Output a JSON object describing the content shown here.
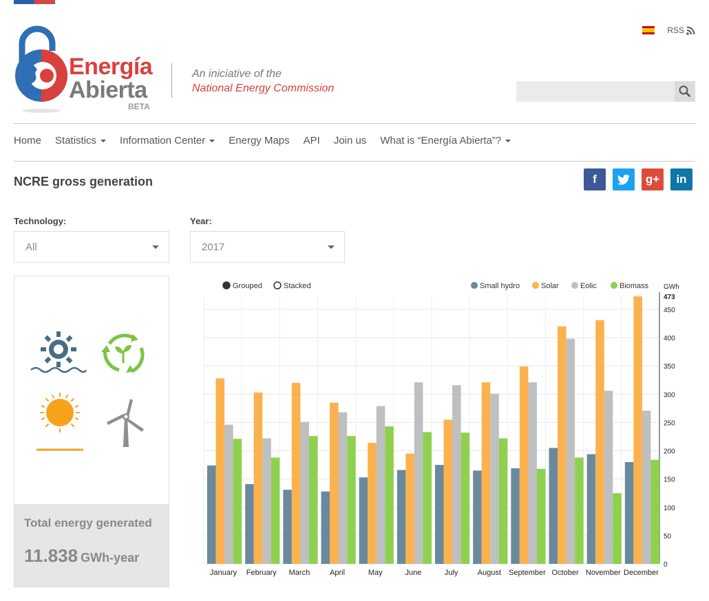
{
  "header": {
    "brand_line1": "Energía",
    "brand_line2": "Abierta",
    "brand_beta": "BETA",
    "tagline_line1": "An iniciative of the",
    "tagline_line2": "National Energy Commission",
    "rss_label": "RSS",
    "search_placeholder": ""
  },
  "nav": {
    "items": [
      {
        "label": "Home"
      },
      {
        "label": "Statistics"
      },
      {
        "label": "Information Center"
      },
      {
        "label": "Energy Maps"
      },
      {
        "label": "API"
      },
      {
        "label": "Join us"
      },
      {
        "label": "What is “Energía Abierta”?"
      }
    ]
  },
  "page": {
    "title": "NCRE gross generation",
    "social": [
      "f",
      "t",
      "g+",
      "in"
    ]
  },
  "filters": {
    "technology_label": "Technology:",
    "technology_value": "All",
    "year_label": "Year:",
    "year_value": "2017"
  },
  "summary": {
    "label": "Total energy generated",
    "value": "11.838",
    "unit": "GWh-year"
  },
  "colors": {
    "small_hydro": "#6b899d",
    "solar": "#fbb24e",
    "eolic": "#bdbfc1",
    "biomass": "#8fd14f",
    "brand_red": "#d8413d"
  },
  "chart_data": {
    "type": "bar",
    "mode_options": [
      "Grouped",
      "Stacked"
    ],
    "mode_selected": "Grouped",
    "y_unit": "GWh",
    "ylim": [
      0,
      473
    ],
    "y_ticks": [
      0,
      50,
      100,
      150,
      200,
      250,
      300,
      350,
      400,
      450
    ],
    "y_max_label": "473",
    "categories": [
      "January",
      "February",
      "March",
      "April",
      "May",
      "June",
      "July",
      "August",
      "September",
      "October",
      "November",
      "December"
    ],
    "series": [
      {
        "name": "Small hydro",
        "color": "#6b899d",
        "values": [
          174,
          141,
          131,
          128,
          153,
          166,
          175,
          165,
          169,
          205,
          194,
          180
        ]
      },
      {
        "name": "Solar",
        "color": "#fbb24e",
        "values": [
          328,
          303,
          320,
          285,
          214,
          195,
          255,
          321,
          349,
          420,
          431,
          473
        ]
      },
      {
        "name": "Eolic",
        "color": "#bdbfc1",
        "values": [
          246,
          222,
          251,
          268,
          279,
          321,
          316,
          301,
          321,
          398,
          306,
          271
        ]
      },
      {
        "name": "Biomass",
        "color": "#8fd14f",
        "values": [
          221,
          188,
          226,
          226,
          243,
          233,
          232,
          222,
          168,
          188,
          125,
          184
        ]
      }
    ],
    "legend_position": "top-right",
    "grid": true
  }
}
